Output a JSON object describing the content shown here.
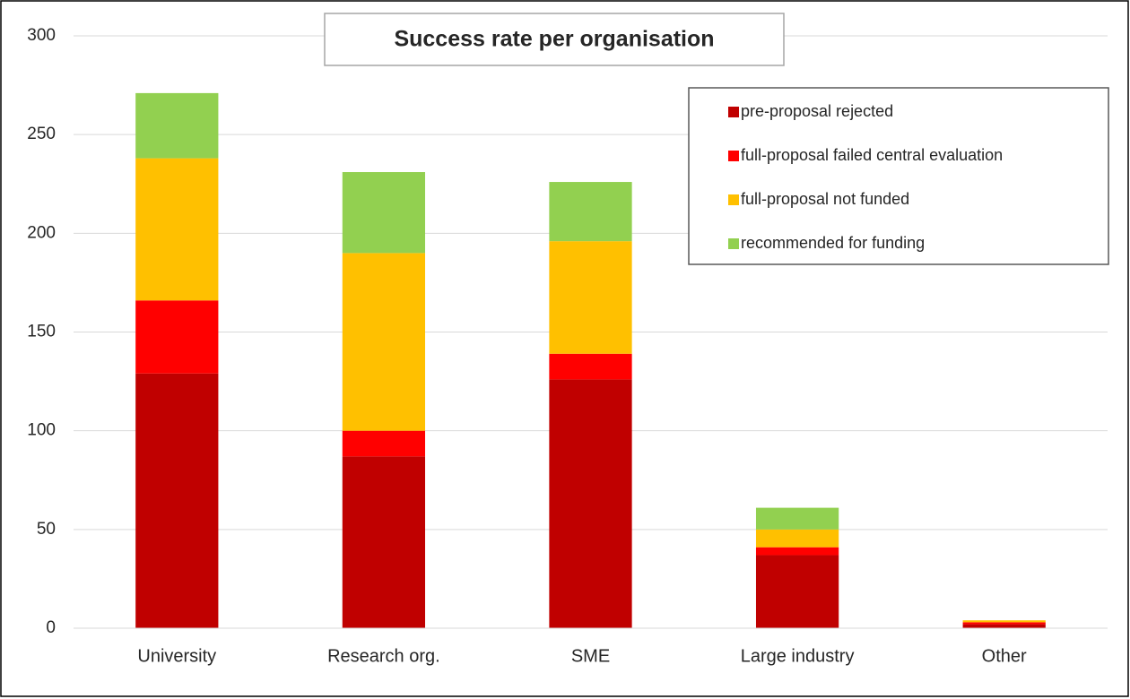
{
  "chart_data": {
    "type": "stacked_bar",
    "title": "Success rate per organisation",
    "categories": [
      "University",
      "Research org.",
      "SME",
      "Large industry",
      "Other"
    ],
    "series": [
      {
        "name": "pre-proposal rejected",
        "color": "#c00000",
        "values": [
          129,
          87,
          126,
          37,
          2
        ]
      },
      {
        "name": "full-proposal failed central evaluation",
        "color": "#ff0000",
        "values": [
          37,
          13,
          13,
          4,
          1
        ]
      },
      {
        "name": "full-proposal not funded",
        "color": "#ffc000",
        "values": [
          72,
          90,
          57,
          9,
          1
        ]
      },
      {
        "name": "recommended for funding",
        "color": "#92d050",
        "values": [
          33,
          41,
          30,
          11,
          0
        ]
      }
    ],
    "ylim": [
      0,
      300
    ],
    "yticks": [
      0,
      50,
      100,
      150,
      200,
      250,
      300
    ],
    "grid": true,
    "legend": "top-right"
  }
}
